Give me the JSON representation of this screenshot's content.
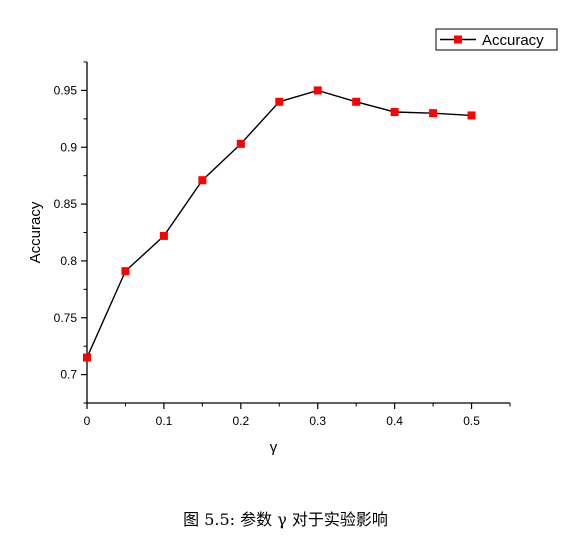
{
  "chart_data": {
    "type": "line",
    "xlabel": "γ",
    "ylabel": "Accuracy",
    "xlim": [
      0,
      0.55
    ],
    "ylim": [
      0.675,
      0.975
    ],
    "x_ticks": [
      "0",
      "0.1",
      "0.2",
      "0.3",
      "0.4",
      "0.5"
    ],
    "y_ticks": [
      "0.7",
      "0.75",
      "0.8",
      "0.85",
      "0.9",
      "0.95"
    ],
    "grid": false,
    "legend_position": "top-right",
    "series": [
      {
        "name": "Accuracy",
        "color": "#ff0000",
        "line_color": "#000000",
        "marker": "square",
        "x": [
          0,
          0.05,
          0.1,
          0.15,
          0.2,
          0.25,
          0.3,
          0.35,
          0.4,
          0.45,
          0.5
        ],
        "y": [
          0.715,
          0.791,
          0.822,
          0.871,
          0.903,
          0.94,
          0.95,
          0.94,
          0.931,
          0.93,
          0.928
        ]
      }
    ]
  },
  "caption": "图 5.5: 参数 γ 对于实验影响"
}
